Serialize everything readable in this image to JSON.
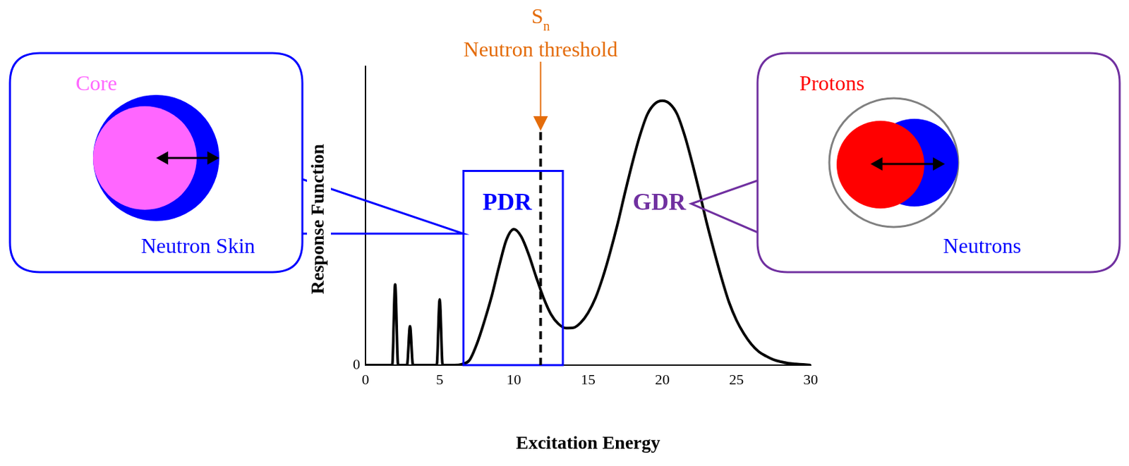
{
  "chart_data": {
    "type": "line",
    "x_label": "Excitation Energy",
    "y_label": "Response Function",
    "x": [
      0,
      1.8,
      2,
      2.2,
      2.8,
      3,
      3.2,
      4.8,
      5,
      5.2,
      6,
      6.5,
      7,
      7.5,
      8,
      8.5,
      9,
      9.5,
      10,
      10.5,
      11,
      11.5,
      12,
      12.5,
      13,
      13.5,
      14,
      14.5,
      15,
      15.5,
      16,
      16.5,
      17,
      17.5,
      18,
      18.5,
      19,
      19.5,
      20,
      20.5,
      21,
      21.5,
      22,
      22.5,
      23,
      23.5,
      24,
      24.5,
      25,
      25.5,
      26,
      26.5,
      27,
      27.5,
      28,
      28.5,
      29,
      29.5,
      30
    ],
    "values": [
      0,
      0,
      27,
      0,
      0,
      13,
      0,
      0,
      22,
      0,
      0,
      0.3,
      1.6,
      7,
      14.5,
      23,
      33,
      42,
      45.5,
      43,
      37,
      29.5,
      22.5,
      17,
      13.8,
      12.4,
      12.5,
      14.2,
      17.5,
      22.5,
      29.5,
      38,
      47.5,
      58,
      68,
      77,
      84,
      87.5,
      88.5,
      87.5,
      84,
      77,
      68,
      58,
      47.5,
      38,
      29,
      21,
      15,
      10.5,
      7,
      4.5,
      3,
      1.8,
      1.1,
      0.6,
      0.4,
      0.2,
      0
    ],
    "color": "#000000",
    "xlim": [
      0,
      30
    ],
    "xticks": [
      0,
      5,
      10,
      15,
      20,
      25,
      30
    ],
    "ylim": [
      0,
      100
    ],
    "yticks": [
      0
    ],
    "grid": false,
    "annotations": {
      "threshold": {
        "x": 11.8,
        "y": 78,
        "symbol": "S",
        "subscript": "n",
        "label": "Neutron threshold",
        "color": "#e46c0a"
      },
      "pdr": {
        "label": "PDR",
        "x": [
          6.6,
          13.3
        ],
        "y": [
          0,
          65
        ],
        "color": "#0000ff"
      },
      "gdr": {
        "label": "GDR",
        "x": 19.8,
        "y": 54,
        "color": "#7030a0"
      }
    },
    "left_inset": {
      "core": "Core",
      "skin": "Neutron Skin",
      "core_color": "#ff66ff",
      "skin_color": "#0000ff",
      "border_color": "#0000ff"
    },
    "right_inset": {
      "protons": "Protons",
      "neutrons": "Neutrons",
      "protons_color": "#ff0000",
      "neutrons_color": "#0000ff",
      "border_color": "#7030a0"
    }
  }
}
